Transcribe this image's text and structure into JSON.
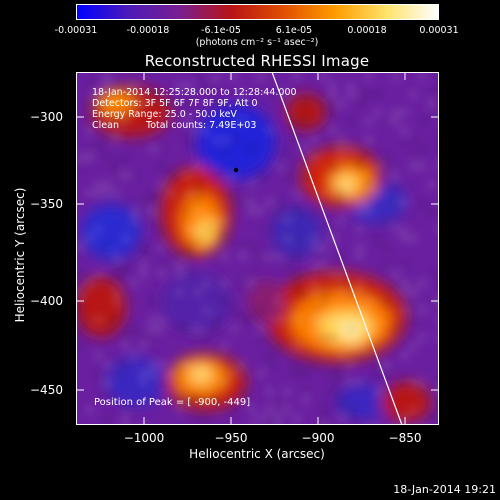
{
  "colorbar": {
    "ticks": [
      "-0.00031",
      "-0.00018",
      "-6.1e-05",
      "6.1e-05",
      "0.00018",
      "0.00031"
    ],
    "units": "(photons cm⁻² s⁻¹ asec⁻²)"
  },
  "title": "Reconstructed RHESSI Image",
  "info": {
    "time_range": "18-Jan-2014 12:25:28.000 to 12:28:44.000",
    "detectors": "Detectors: 3F 5F 6F 7F 8F 9F, Att 0",
    "energy": "Energy Range: 25.0 - 50.0 keV",
    "algorithm": "Clean",
    "counts": "Total counts: 7.49E+03"
  },
  "axes": {
    "xlabel": "Heliocentric X (arcsec)",
    "ylabel": "Heliocentric Y (arcsec)",
    "xticks": [
      "−1000",
      "−950",
      "−900",
      "−850"
    ],
    "yticks": [
      "−300",
      "−350",
      "−400",
      "−450"
    ]
  },
  "peak": {
    "label": "Position of Peak = [ -900, -449]"
  },
  "timestamp": "18-Jan-2014 19:21",
  "colors": {
    "colormap": [
      "#0000ff",
      "#4c1ab8",
      "#7a1f8f",
      "#b81414",
      "#e04f00",
      "#ff9b00",
      "#ffe36b",
      "#ffffff"
    ],
    "frame": "#ffffff",
    "background": "#000000"
  }
}
